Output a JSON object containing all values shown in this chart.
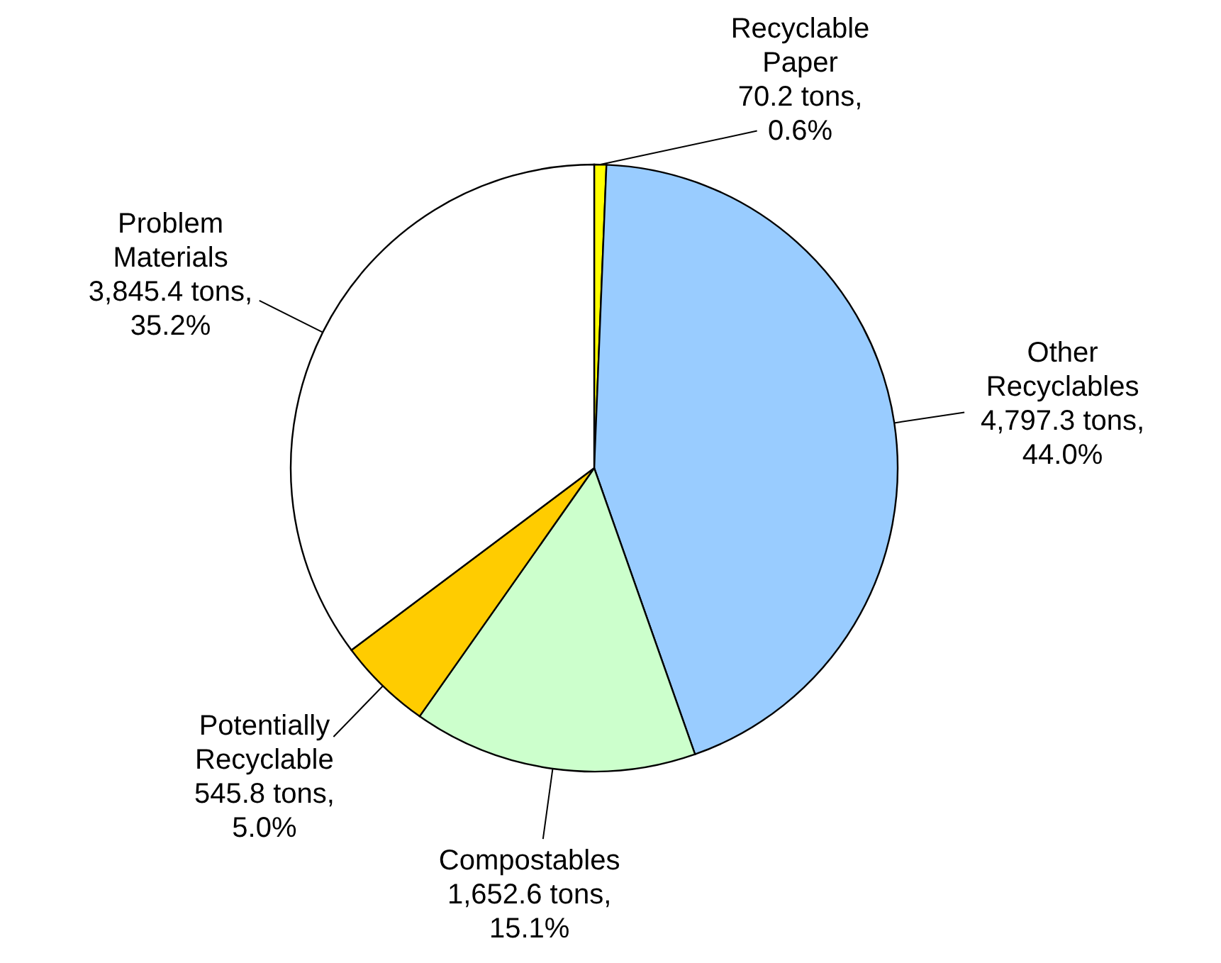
{
  "chart_data": {
    "type": "pie",
    "categories": [
      "Recyclable Paper",
      "Other Recyclables",
      "Compostables",
      "Potentially Recyclable",
      "Problem Materials"
    ],
    "values": [
      70.2,
      4797.3,
      1652.6,
      545.8,
      3845.4
    ],
    "value_labels": [
      "70.2 tons, 0.6%",
      "4,797.3 tons, 44.0%",
      "1,652.6 tons, 15.1%",
      "545.8 tons, 5.0%",
      "3,845.4 tons, 35.2%"
    ],
    "colors": [
      "#ffff00",
      "#99ccff",
      "#ccffcc",
      "#ffcc00",
      "#ffffff"
    ]
  }
}
